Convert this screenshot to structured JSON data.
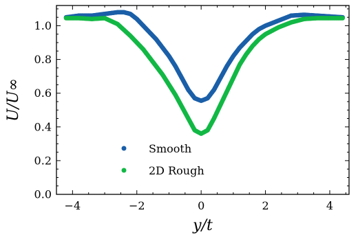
{
  "chart_data": {
    "type": "scatter",
    "xlabel": "y/t",
    "ylabel": "U/U∞",
    "xlim": [
      -4.5,
      4.6
    ],
    "ylim": [
      0.0,
      1.12
    ],
    "x_ticks": [
      -4,
      -2,
      0,
      2,
      4
    ],
    "x_tick_labels": [
      "−4",
      "−2",
      "0",
      "2",
      "4"
    ],
    "y_ticks": [
      0.0,
      0.2,
      0.4,
      0.6,
      0.8,
      1.0
    ],
    "y_tick_labels": [
      "0.0",
      "0.2",
      "0.4",
      "0.6",
      "0.8",
      "1.0"
    ],
    "grid": false,
    "legend_position": "lower-left",
    "series": [
      {
        "name": "Smooth",
        "color": "#1a5fa8",
        "x": [
          -4.2,
          -3.8,
          -3.4,
          -3.0,
          -2.6,
          -2.4,
          -2.2,
          -2.0,
          -1.8,
          -1.6,
          -1.4,
          -1.2,
          -1.0,
          -0.8,
          -0.6,
          -0.4,
          -0.2,
          0.0,
          0.2,
          0.4,
          0.6,
          0.8,
          1.0,
          1.2,
          1.4,
          1.6,
          1.8,
          2.0,
          2.4,
          2.8,
          3.2,
          3.6,
          4.0,
          4.4
        ],
        "y": [
          1.05,
          1.06,
          1.06,
          1.07,
          1.08,
          1.08,
          1.07,
          1.04,
          1.0,
          0.96,
          0.92,
          0.87,
          0.82,
          0.76,
          0.69,
          0.62,
          0.57,
          0.555,
          0.57,
          0.62,
          0.69,
          0.76,
          0.82,
          0.87,
          0.91,
          0.95,
          0.98,
          1.0,
          1.03,
          1.06,
          1.065,
          1.06,
          1.055,
          1.05
        ]
      },
      {
        "name": "2D Rough",
        "color": "#12b845",
        "x": [
          -4.2,
          -3.8,
          -3.4,
          -3.0,
          -2.6,
          -2.2,
          -2.0,
          -1.8,
          -1.6,
          -1.4,
          -1.2,
          -1.0,
          -0.8,
          -0.6,
          -0.4,
          -0.2,
          0.0,
          0.2,
          0.4,
          0.6,
          0.8,
          1.0,
          1.2,
          1.4,
          1.6,
          1.8,
          2.0,
          2.4,
          2.8,
          3.2,
          3.6,
          4.0,
          4.4
        ],
        "y": [
          1.045,
          1.045,
          1.04,
          1.045,
          1.01,
          0.94,
          0.9,
          0.86,
          0.81,
          0.76,
          0.71,
          0.65,
          0.59,
          0.52,
          0.45,
          0.38,
          0.36,
          0.38,
          0.45,
          0.53,
          0.61,
          0.69,
          0.77,
          0.83,
          0.88,
          0.92,
          0.95,
          0.99,
          1.02,
          1.04,
          1.045,
          1.045,
          1.045
        ]
      }
    ]
  }
}
